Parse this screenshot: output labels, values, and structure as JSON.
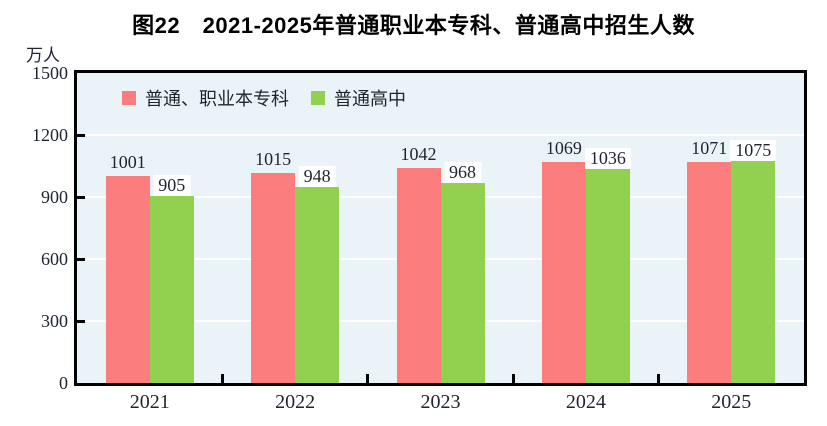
{
  "title": "图22　2021-2025年普通职业本专科、普通高中招生人数",
  "axis_unit": "万人",
  "chart_data": {
    "type": "bar",
    "title": "图22 2021-2025年普通职业本专科、普通高中招生人数",
    "unit_label": "万人",
    "categories": [
      "2021",
      "2022",
      "2023",
      "2024",
      "2025"
    ],
    "series": [
      {
        "name": "普通、职业本专科",
        "color": "#FC7D7D",
        "values": [
          1001,
          1015,
          1042,
          1069,
          1071
        ]
      },
      {
        "name": "普通高中",
        "color": "#92D050",
        "values": [
          905,
          948,
          968,
          1036,
          1075
        ]
      }
    ],
    "ylim": [
      0,
      1500
    ],
    "yticks": [
      0,
      300,
      600,
      900,
      1200,
      1500
    ],
    "grid": "horizontal-white-lines",
    "legend_position": "top-left-inside",
    "plot_background": "#EAF3F7",
    "value_labels": "above-bars"
  }
}
